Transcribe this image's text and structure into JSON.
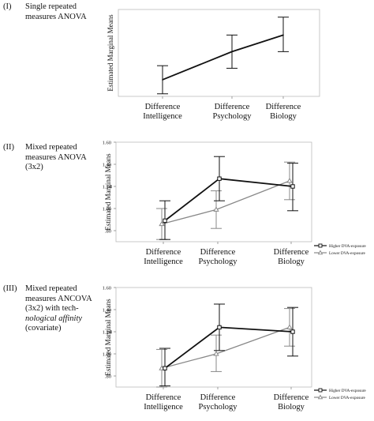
{
  "panels": [
    {
      "roman": "(I)",
      "desc_lines": [
        "Single repeated",
        "measures ANOVA"
      ]
    },
    {
      "roman": "(II)",
      "desc_lines": [
        "Mixed repeated",
        "measures ANOVA",
        "(3x2)"
      ]
    },
    {
      "roman": "(III)",
      "desc_lines": [
        "Mixed repeated",
        "measures ANCOVA",
        "(3x2) with tech-",
        "nological affinity",
        "(covariate)"
      ]
    }
  ],
  "chart_data": [
    {
      "type": "line",
      "ylabel": "Estimated Marginal Means",
      "categories": [
        [
          "Difference",
          "Intelligence"
        ],
        [
          "Difference",
          "Psychology"
        ],
        [
          "Difference",
          "Biology"
        ]
      ],
      "ylim": [
        0.74,
        1.42
      ],
      "yticks": [],
      "series": [
        {
          "color": "#111111",
          "marker": "none",
          "values": [
            0.87,
            1.09,
            1.22
          ],
          "ci_low": [
            0.76,
            0.96,
            1.09
          ],
          "ci_high": [
            0.98,
            1.22,
            1.36
          ]
        }
      ]
    },
    {
      "type": "line",
      "ylabel": "Estimated Marginal Means",
      "categories": [
        [
          "Difference",
          "Intelligence"
        ],
        [
          "Difference",
          "Psychology"
        ],
        [
          "Difference",
          "Biology"
        ]
      ],
      "ylim": [
        0.7,
        1.6
      ],
      "yticks": [
        ".80",
        "1.00",
        "1.20",
        "1.40",
        "1.60"
      ],
      "legend_position": "bottom-right",
      "series": [
        {
          "name": "Higher DVA-exposure",
          "color": "#111111",
          "marker": "square",
          "values": [
            0.89,
            1.27,
            1.2
          ],
          "ci_low": [
            0.72,
            1.07,
            0.98
          ],
          "ci_high": [
            1.07,
            1.47,
            1.41
          ]
        },
        {
          "name": "Lower DVA-exposure",
          "color": "#888888",
          "marker": "triangle",
          "values": [
            0.86,
            0.99,
            1.25
          ],
          "ci_low": [
            0.72,
            0.82,
            1.08
          ],
          "ci_high": [
            1.0,
            1.16,
            1.42
          ]
        }
      ]
    },
    {
      "type": "line",
      "ylabel": "Estimated Marginal Means",
      "categories": [
        [
          "Difference",
          "Intelligence"
        ],
        [
          "Difference",
          "Psychology"
        ],
        [
          "Difference",
          "Biology"
        ]
      ],
      "ylim": [
        0.7,
        1.6
      ],
      "yticks": [
        ".80",
        "1.00",
        "1.20",
        "1.40",
        "1.60"
      ],
      "legend_position": "bottom-right",
      "series": [
        {
          "name": "Higher DVA-exposure",
          "color": "#111111",
          "marker": "square",
          "values": [
            0.87,
            1.24,
            1.2
          ],
          "ci_low": [
            0.71,
            1.03,
            0.98
          ],
          "ci_high": [
            1.05,
            1.45,
            1.42
          ]
        },
        {
          "name": "Lower DVA-exposure",
          "color": "#888888",
          "marker": "triangle",
          "values": [
            0.87,
            1.0,
            1.24
          ],
          "ci_low": [
            0.7,
            0.84,
            1.07
          ],
          "ci_high": [
            1.04,
            1.17,
            1.41
          ]
        }
      ]
    }
  ]
}
